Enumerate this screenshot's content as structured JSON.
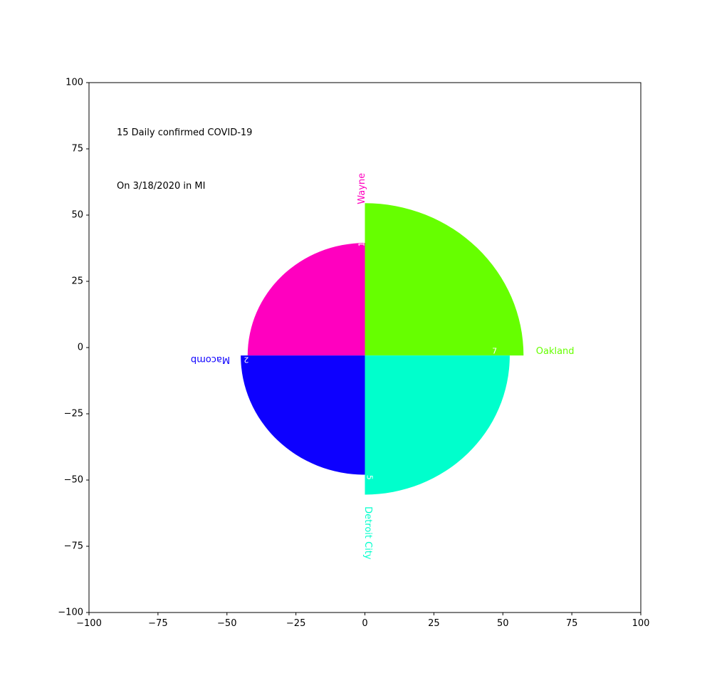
{
  "chart_data": {
    "type": "polar-bar",
    "annotations": [
      "15 Daily confirmed COVID-19",
      "On 3/18/2020 in MI"
    ],
    "xlim": [
      -100,
      100
    ],
    "ylim": [
      -100,
      100
    ],
    "xticks": [
      -100,
      -75,
      -50,
      -25,
      0,
      25,
      50,
      75,
      100
    ],
    "yticks": [
      100,
      75,
      50,
      25,
      0,
      -25,
      -50,
      -75,
      -100
    ],
    "xtick_labels": [
      "−100",
      "−75",
      "−50",
      "−25",
      "0",
      "25",
      "50",
      "75",
      "100"
    ],
    "ytick_labels": [
      "100",
      "75",
      "50",
      "25",
      "0",
      "−25",
      "−50",
      "−75",
      "−100"
    ],
    "grid": false,
    "legend": "none",
    "series": [
      {
        "category": "Oakland",
        "value": 7,
        "color": "#66ff00"
      },
      {
        "category": "Wayne",
        "value": 1,
        "color": "#ff00bf"
      },
      {
        "category": "Macomb",
        "value": 2,
        "color": "#0d00ff"
      },
      {
        "category": "Detroit City",
        "value": 5,
        "color": "#00ffcc"
      }
    ]
  }
}
